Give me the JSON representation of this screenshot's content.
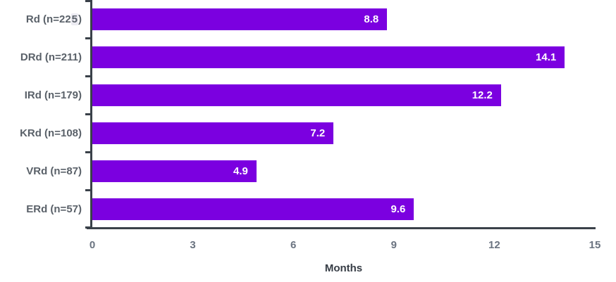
{
  "chart_data": {
    "type": "bar",
    "orientation": "horizontal",
    "title": "",
    "xlabel": "Months",
    "ylabel": "",
    "categories": [
      "Rd (n=225)",
      "DRd (n=211)",
      "IRd (n=179)",
      "KRd (n=108)",
      "VRd (n=87)",
      "ERd (n=57)"
    ],
    "values": [
      8.8,
      14.1,
      12.2,
      7.2,
      4.9,
      9.6
    ],
    "value_labels": [
      "8.8",
      "14.1",
      "12.2",
      "7.2",
      "4.9",
      "9.6"
    ],
    "xlim": [
      0,
      15
    ],
    "xticks": [
      "0",
      "3",
      "6",
      "9",
      "12",
      "15"
    ],
    "grid": false,
    "legend": null,
    "category_label_highlight": {
      "category_index": 0,
      "before": "Rd (n=22",
      "highlighted": "5",
      "after": ")"
    },
    "colors": {
      "bar": "#7B00E0",
      "value_label": "#FFFFFF",
      "axis_line": "#3A4149",
      "category_label": "#5A6169",
      "tick_label": "#6A7380",
      "xlabel": "#363C45",
      "highlight_bg": "#ECEBF2"
    }
  }
}
